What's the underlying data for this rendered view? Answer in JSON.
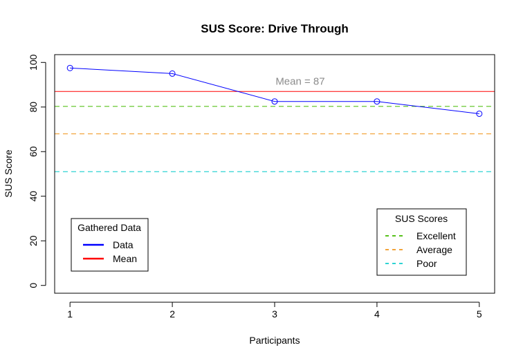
{
  "chart_data": {
    "type": "line",
    "title": "SUS Score: Drive Through",
    "xlabel": "Participants",
    "ylabel": "SUS Score",
    "x": [
      1,
      2,
      3,
      4,
      5
    ],
    "xlim": [
      0.85,
      5.15
    ],
    "ylim": [
      -3.5,
      103.5
    ],
    "xticks": [
      "1",
      "2",
      "3",
      "4",
      "5"
    ],
    "yticks": [
      "0",
      "20",
      "40",
      "60",
      "80",
      "100"
    ],
    "series": [
      {
        "name": "Data",
        "color": "#0000ff",
        "values": [
          97.5,
          95,
          82.5,
          82.5,
          77
        ]
      }
    ],
    "reference_lines": [
      {
        "name": "Mean",
        "value": 87,
        "color": "#ff0000",
        "style": "solid"
      },
      {
        "name": "Excellent",
        "value": 80.3,
        "color": "#56c11a",
        "style": "dashed"
      },
      {
        "name": "Average",
        "value": 68,
        "color": "#f2a33a",
        "style": "dashed"
      },
      {
        "name": "Poor",
        "value": 51,
        "color": "#2fd4d4",
        "style": "dashed"
      }
    ],
    "annotation": {
      "text": "Mean = 87",
      "x": 3.25,
      "y": 91.5
    },
    "legend_gathered": {
      "title": "Gathered Data",
      "placement": "bottom-left",
      "entries": [
        {
          "label": "Data",
          "color": "#0000ff"
        },
        {
          "label": "Mean",
          "color": "#ff0000"
        }
      ]
    },
    "legend_sus": {
      "title": "SUS Scores",
      "placement": "bottom-right",
      "entries": [
        {
          "label": "Excellent",
          "color": "#56c11a"
        },
        {
          "label": "Average",
          "color": "#f2a33a"
        },
        {
          "label": "Poor",
          "color": "#2fd4d4"
        }
      ]
    },
    "grid": false
  }
}
